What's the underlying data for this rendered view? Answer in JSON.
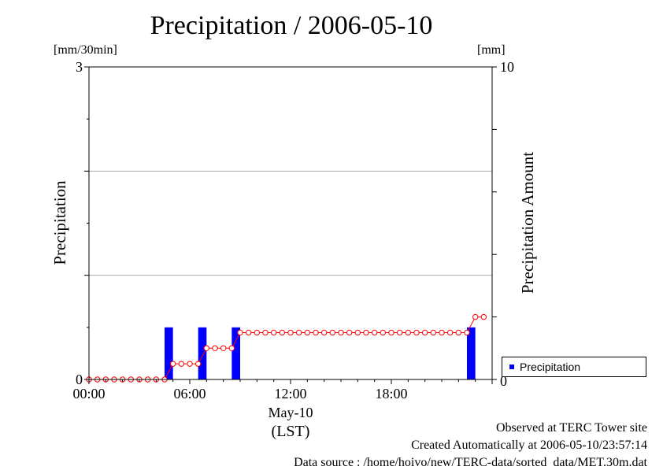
{
  "chart_data": {
    "type": "bar",
    "title": "Precipitation / 2006-05-10",
    "left_axis": {
      "label": "Precipitation",
      "unit": "[mm/30min]",
      "range": [
        0,
        3
      ],
      "tick_labels": [
        "0",
        "3"
      ]
    },
    "right_axis": {
      "label": "Precipitation Amount",
      "unit": "[mm]",
      "range": [
        0,
        10
      ],
      "tick_labels": [
        "0",
        "10"
      ]
    },
    "x_axis": {
      "range_hours": [
        0,
        24
      ],
      "tick_labels": [
        "00:00",
        "06:00",
        "12:00",
        "18:00"
      ],
      "date_label": "May-10",
      "timezone_label": "(LST)"
    },
    "grid": "horizontal",
    "series": [
      {
        "name": "Precipitation",
        "type": "bar",
        "axis": "left",
        "color": "#0000ff",
        "bars": [
          {
            "time": "04:30",
            "value": 0.5
          },
          {
            "time": "06:30",
            "value": 0.5
          },
          {
            "time": "08:30",
            "value": 0.5
          },
          {
            "time": "22:30",
            "value": 0.5
          }
        ]
      },
      {
        "type": "line",
        "axis": "right",
        "color": "#ff0000",
        "points": [
          [
            "00:00",
            0
          ],
          [
            "00:30",
            0
          ],
          [
            "01:00",
            0
          ],
          [
            "01:30",
            0
          ],
          [
            "02:00",
            0
          ],
          [
            "02:30",
            0
          ],
          [
            "03:00",
            0
          ],
          [
            "03:30",
            0
          ],
          [
            "04:00",
            0
          ],
          [
            "04:30",
            0
          ],
          [
            "05:00",
            0.5
          ],
          [
            "05:30",
            0.5
          ],
          [
            "06:00",
            0.5
          ],
          [
            "06:30",
            0.5
          ],
          [
            "07:00",
            1
          ],
          [
            "07:30",
            1
          ],
          [
            "08:00",
            1
          ],
          [
            "08:30",
            1
          ],
          [
            "09:00",
            1.5
          ],
          [
            "09:30",
            1.5
          ],
          [
            "10:00",
            1.5
          ],
          [
            "10:30",
            1.5
          ],
          [
            "11:00",
            1.5
          ],
          [
            "11:30",
            1.5
          ],
          [
            "12:00",
            1.5
          ],
          [
            "12:30",
            1.5
          ],
          [
            "13:00",
            1.5
          ],
          [
            "13:30",
            1.5
          ],
          [
            "14:00",
            1.5
          ],
          [
            "14:30",
            1.5
          ],
          [
            "15:00",
            1.5
          ],
          [
            "15:30",
            1.5
          ],
          [
            "16:00",
            1.5
          ],
          [
            "16:30",
            1.5
          ],
          [
            "17:00",
            1.5
          ],
          [
            "17:30",
            1.5
          ],
          [
            "18:00",
            1.5
          ],
          [
            "18:30",
            1.5
          ],
          [
            "19:00",
            1.5
          ],
          [
            "19:30",
            1.5
          ],
          [
            "20:00",
            1.5
          ],
          [
            "20:30",
            1.5
          ],
          [
            "21:00",
            1.5
          ],
          [
            "21:30",
            1.5
          ],
          [
            "22:00",
            1.5
          ],
          [
            "22:30",
            1.5
          ],
          [
            "23:00",
            2
          ],
          [
            "23:30",
            2
          ]
        ]
      }
    ],
    "legend": {
      "position": "bottom-right",
      "entries": [
        "Precipitation"
      ]
    }
  },
  "footer": {
    "line1": "Observed at TERC Tower site",
    "line2": "Created Automatically at 2006-05-10/23:57:14",
    "line3": "Data source : /home/hoivo/new/TERC-data/sorted  data/MET.30m.dat"
  }
}
